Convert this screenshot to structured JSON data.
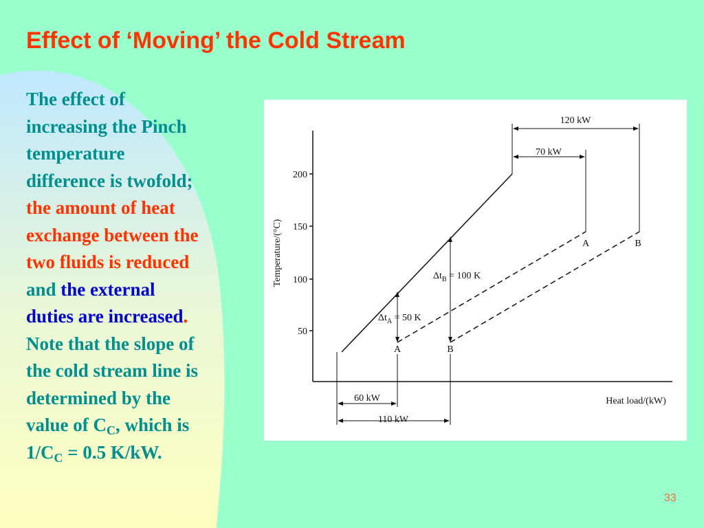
{
  "slide": {
    "title": "Effect of ‘Moving’ the Cold Stream",
    "page_number": "33",
    "body": [
      [
        {
          "text": "The effect of",
          "color": "#008f8f"
        }
      ],
      [
        {
          "text": "increasing the Pinch",
          "color": "#008f8f"
        }
      ],
      [
        {
          "text": "temperature",
          "color": "#008f8f"
        }
      ],
      [
        {
          "text": "difference is twofold;",
          "color": "#008f8f"
        }
      ],
      [
        {
          "text": "the amount of heat",
          "color": "#ff3300"
        }
      ],
      [
        {
          "text": "exchange between the",
          "color": "#ff3300"
        }
      ],
      [
        {
          "text": "two fluids is reduced",
          "color": "#ff3300"
        }
      ],
      [
        {
          "text": "and ",
          "color": "#008f8f"
        },
        {
          "text": "the external",
          "color": "#0000cc"
        }
      ],
      [
        {
          "text": "duties are increased",
          "color": "#0000cc"
        },
        {
          "text": ".",
          "color": "#ff3300"
        }
      ],
      [
        {
          "text": "Note that the slope of",
          "color": "#008f8f"
        }
      ],
      [
        {
          "text": "the cold stream line is",
          "color": "#008f8f"
        }
      ],
      [
        {
          "text": "determined by the",
          "color": "#008f8f"
        }
      ],
      [
        {
          "text": "value of C",
          "color": "#008f8f"
        },
        {
          "text": "C",
          "color": "#008f8f",
          "sub": true
        },
        {
          "text": ", which is",
          "color": "#008f8f"
        }
      ],
      [
        {
          "text": "1/C",
          "color": "#008f8f"
        },
        {
          "text": "C",
          "color": "#008f8f",
          "sub": true
        },
        {
          "text": " = 0.5 K/kW.",
          "color": "#008f8f"
        }
      ]
    ],
    "figure": {
      "y_axis_label": "Temperature/(°C)",
      "x_axis_label": "Heat load/(kW)",
      "yticks": [
        "200",
        "150",
        "100",
        "50"
      ],
      "top_wide": "120 kW",
      "top_narrow": "70 kW",
      "bottom_narrow": "60 kW",
      "bottom_wide": "110 kW",
      "label_a_top": "A",
      "label_b_top": "B",
      "label_a_bottom": "A",
      "label_b_bottom": "B",
      "delta_a": {
        "symbol": "Δt",
        "sub": "A",
        "rest": " = 50 K"
      },
      "delta_b": {
        "symbol": "Δt",
        "sub": "B",
        "rest": " = 100 K"
      }
    }
  }
}
